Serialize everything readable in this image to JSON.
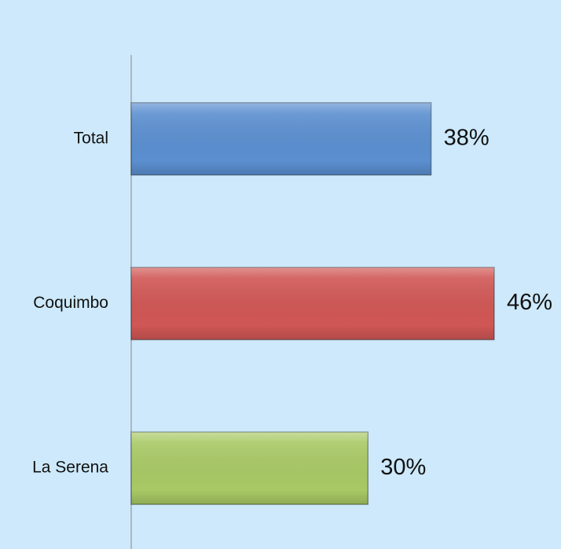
{
  "chart_data": {
    "type": "bar",
    "orientation": "horizontal",
    "categories": [
      "Total",
      "Coquimbo",
      "La Serena"
    ],
    "values": [
      38,
      46,
      30
    ],
    "value_labels": [
      "38%",
      "46%",
      "30%"
    ],
    "colors": [
      "#5b8fd0",
      "#d05755",
      "#a8c965"
    ]
  }
}
